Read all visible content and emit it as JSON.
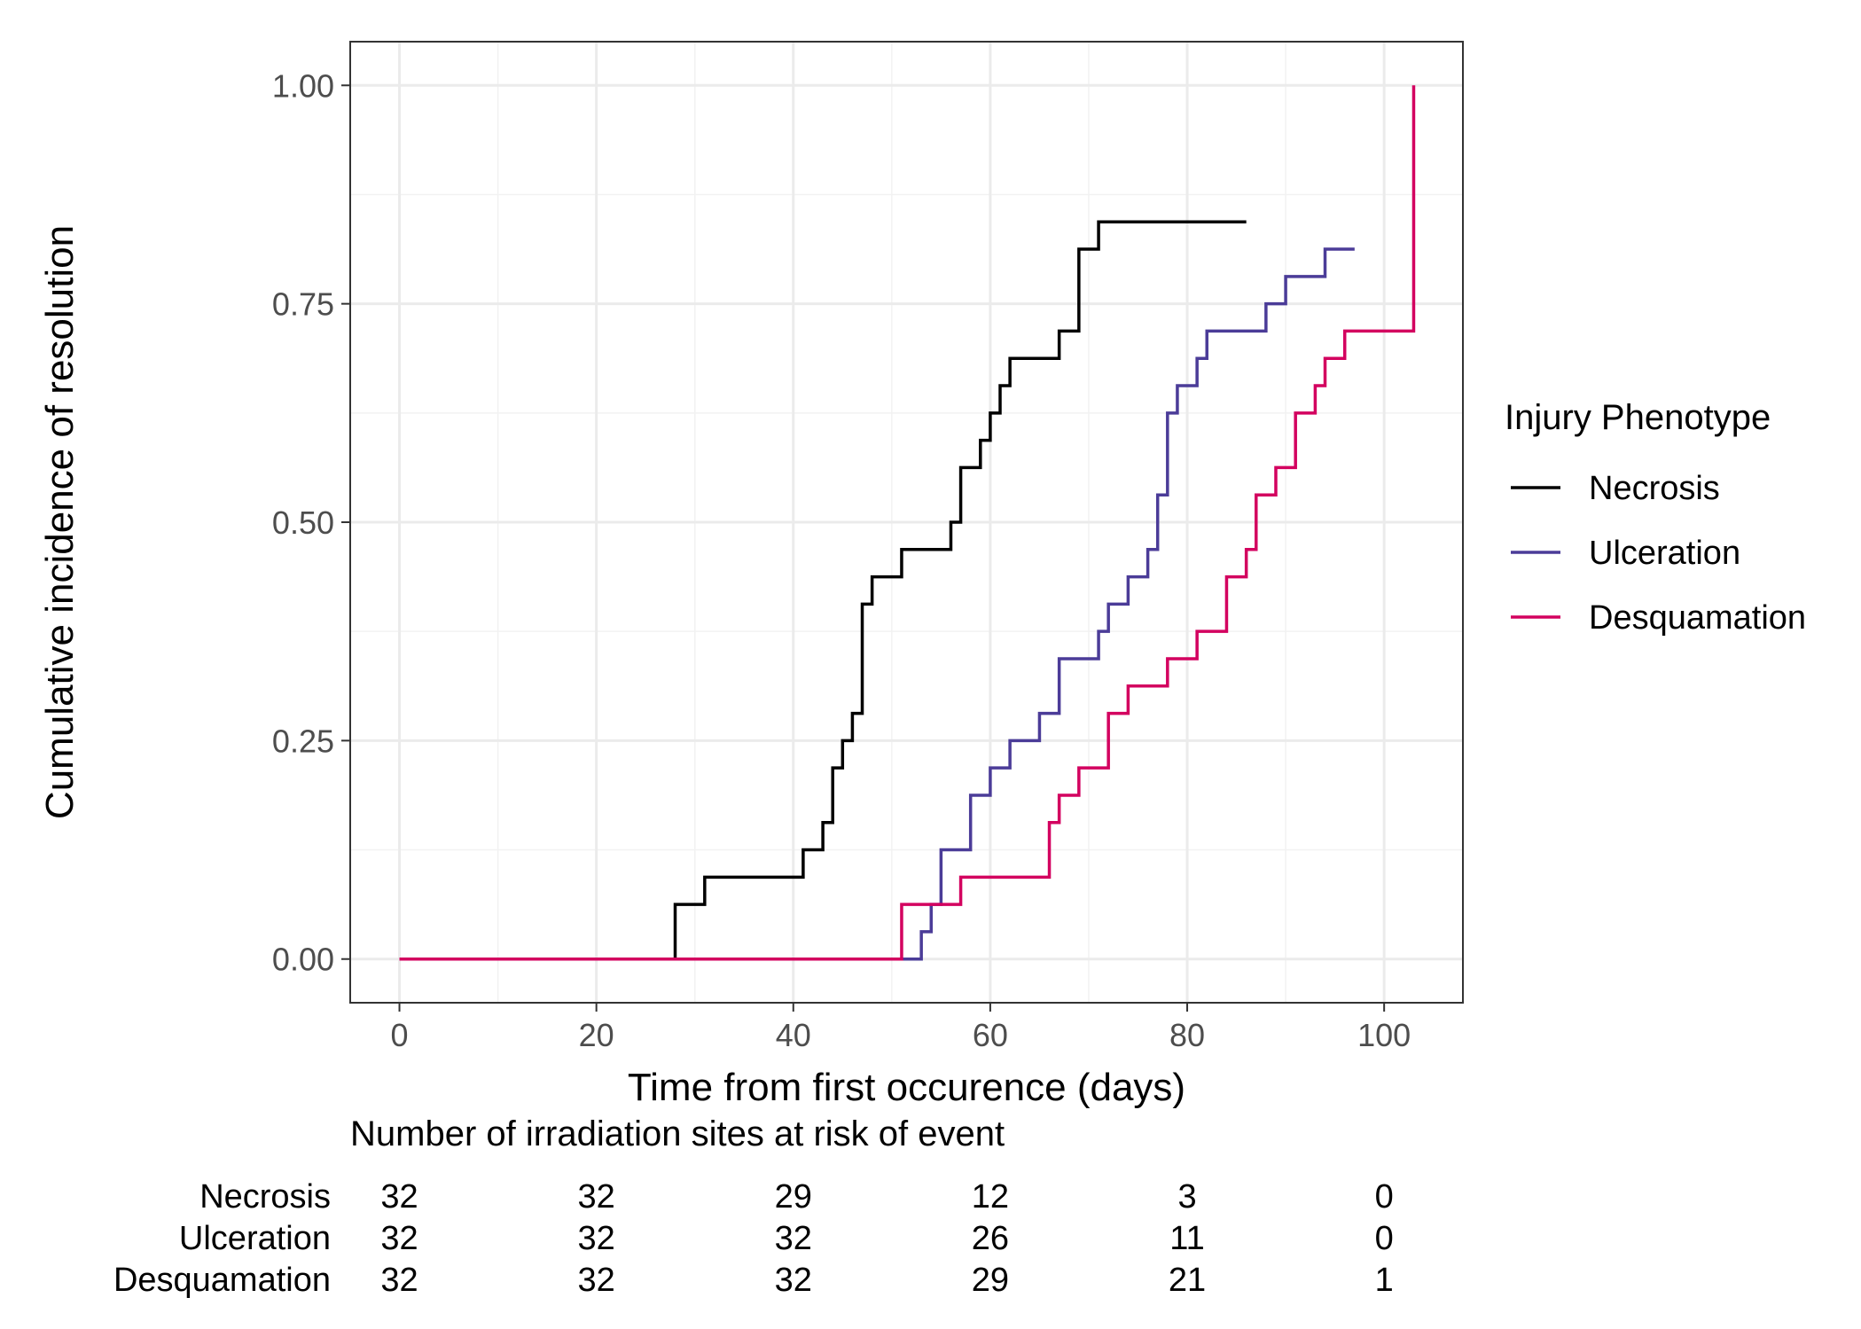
{
  "chart_data": {
    "type": "line",
    "step": true,
    "xlabel": "Time from first occurence (days)",
    "ylabel": "Cumulative incidence of resolution",
    "xlim": [
      -5,
      108
    ],
    "ylim": [
      -0.05,
      1.05
    ],
    "x_ticks": [
      0,
      20,
      40,
      60,
      80,
      100
    ],
    "x_tick_labels": [
      "0",
      "20",
      "40",
      "60",
      "80",
      "100"
    ],
    "y_ticks": [
      0,
      0.25,
      0.5,
      0.75,
      1
    ],
    "y_tick_labels": [
      "0.00",
      "0.25",
      "0.50",
      "0.75",
      "1.00"
    ],
    "grid": true,
    "legend": {
      "title": "Injury Phenotype",
      "position": "right"
    },
    "series": [
      {
        "name": "Necrosis",
        "color": "#000000",
        "points": [
          [
            0,
            0
          ],
          [
            28,
            0.0625
          ],
          [
            31,
            0.09375
          ],
          [
            41,
            0.125
          ],
          [
            43,
            0.15625
          ],
          [
            44,
            0.21875
          ],
          [
            45,
            0.25
          ],
          [
            46,
            0.28125
          ],
          [
            47,
            0.40625
          ],
          [
            48,
            0.4375
          ],
          [
            51,
            0.46875
          ],
          [
            56,
            0.5
          ],
          [
            57,
            0.5625
          ],
          [
            59,
            0.59375
          ],
          [
            60,
            0.625
          ],
          [
            61,
            0.65625
          ],
          [
            62,
            0.6875
          ],
          [
            67,
            0.71875
          ],
          [
            69,
            0.8125
          ],
          [
            71,
            0.84375
          ],
          [
            86,
            0.84375
          ]
        ]
      },
      {
        "name": "Ulceration",
        "color": "#4B3C98",
        "points": [
          [
            0,
            0
          ],
          [
            53,
            0.03125
          ],
          [
            54,
            0.0625
          ],
          [
            55,
            0.125
          ],
          [
            58,
            0.1875
          ],
          [
            60,
            0.21875
          ],
          [
            62,
            0.25
          ],
          [
            65,
            0.28125
          ],
          [
            67,
            0.34375
          ],
          [
            71,
            0.375
          ],
          [
            72,
            0.40625
          ],
          [
            74,
            0.4375
          ],
          [
            76,
            0.46875
          ],
          [
            77,
            0.53125
          ],
          [
            78,
            0.625
          ],
          [
            79,
            0.65625
          ],
          [
            81,
            0.6875
          ],
          [
            82,
            0.71875
          ],
          [
            88,
            0.75
          ],
          [
            90,
            0.78125
          ],
          [
            94,
            0.8125
          ],
          [
            97,
            0.8125
          ]
        ]
      },
      {
        "name": "Desquamation",
        "color": "#D3005F",
        "points": [
          [
            0,
            0
          ],
          [
            51,
            0.0625
          ],
          [
            57,
            0.09375
          ],
          [
            66,
            0.15625
          ],
          [
            67,
            0.1875
          ],
          [
            69,
            0.21875
          ],
          [
            72,
            0.28125
          ],
          [
            74,
            0.3125
          ],
          [
            78,
            0.34375
          ],
          [
            81,
            0.375
          ],
          [
            84,
            0.4375
          ],
          [
            86,
            0.46875
          ],
          [
            87,
            0.53125
          ],
          [
            89,
            0.5625
          ],
          [
            91,
            0.625
          ],
          [
            93,
            0.65625
          ],
          [
            94,
            0.6875
          ],
          [
            96,
            0.71875
          ],
          [
            103,
            0.71875
          ],
          [
            103,
            1.0
          ]
        ]
      }
    ]
  },
  "risk_table": {
    "title": "Number of irradiation sites at risk of event",
    "times": [
      0,
      20,
      40,
      60,
      80,
      100
    ],
    "rows": [
      {
        "name": "Necrosis",
        "values": [
          "32",
          "32",
          "29",
          "12",
          "3",
          "0"
        ]
      },
      {
        "name": "Ulceration",
        "values": [
          "32",
          "32",
          "32",
          "26",
          "11",
          "0"
        ]
      },
      {
        "name": "Desquamation",
        "values": [
          "32",
          "32",
          "32",
          "29",
          "21",
          "1"
        ]
      }
    ]
  }
}
